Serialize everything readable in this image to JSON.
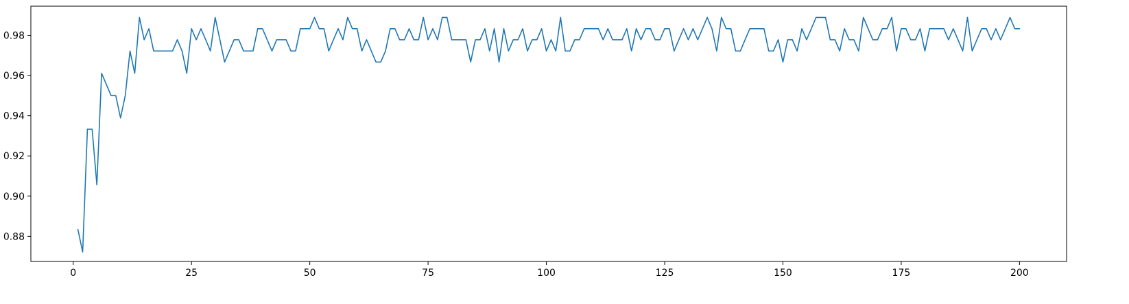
{
  "chart_data": {
    "type": "line",
    "title": "",
    "xlabel": "",
    "ylabel": "",
    "xlim": [
      -8.95,
      209.95
    ],
    "ylim": [
      0.8675,
      0.9945
    ],
    "grid": false,
    "line_color": "#1f77b4",
    "x_ticks": [
      {
        "value": 0,
        "label": "0"
      },
      {
        "value": 25,
        "label": "25"
      },
      {
        "value": 50,
        "label": "50"
      },
      {
        "value": 75,
        "label": "75"
      },
      {
        "value": 100,
        "label": "100"
      },
      {
        "value": 125,
        "label": "125"
      },
      {
        "value": 150,
        "label": "150"
      },
      {
        "value": 175,
        "label": "175"
      },
      {
        "value": 200,
        "label": "200"
      }
    ],
    "y_ticks": [
      {
        "value": 0.88,
        "label": "0.88"
      },
      {
        "value": 0.9,
        "label": "0.90"
      },
      {
        "value": 0.92,
        "label": "0.92"
      },
      {
        "value": 0.94,
        "label": "0.94"
      },
      {
        "value": 0.96,
        "label": "0.96"
      },
      {
        "value": 0.98,
        "label": "0.98"
      }
    ],
    "series": [
      {
        "x_start": 1,
        "values": [
          0.8833,
          0.8722,
          0.9333,
          0.9333,
          0.9056,
          0.9611,
          0.9556,
          0.95,
          0.95,
          0.9389,
          0.95,
          0.9722,
          0.9611,
          0.9889,
          0.9778,
          0.9833,
          0.9722,
          0.9722,
          0.9722,
          0.9722,
          0.9722,
          0.9778,
          0.9722,
          0.9611,
          0.9833,
          0.9778,
          0.9833,
          0.9778,
          0.9722,
          0.9889,
          0.9778,
          0.9667,
          0.9722,
          0.9778,
          0.9778,
          0.9722,
          0.9722,
          0.9722,
          0.9833,
          0.9833,
          0.9778,
          0.9722,
          0.9778,
          0.9778,
          0.9778,
          0.9722,
          0.9722,
          0.9833,
          0.9833,
          0.9833,
          0.9889,
          0.9833,
          0.9833,
          0.9722,
          0.9778,
          0.9833,
          0.9778,
          0.9889,
          0.9833,
          0.9833,
          0.9722,
          0.9778,
          0.9722,
          0.9667,
          0.9667,
          0.9722,
          0.9833,
          0.9833,
          0.9778,
          0.9778,
          0.9833,
          0.9778,
          0.9778,
          0.9889,
          0.9778,
          0.9833,
          0.9778,
          0.9889,
          0.9889,
          0.9778,
          0.9778,
          0.9778,
          0.9778,
          0.9667,
          0.9778,
          0.9778,
          0.9833,
          0.9722,
          0.9833,
          0.9667,
          0.9833,
          0.9722,
          0.9778,
          0.9778,
          0.9833,
          0.9722,
          0.9778,
          0.9778,
          0.9833,
          0.9722,
          0.9778,
          0.9722,
          0.9889,
          0.9722,
          0.9722,
          0.9778,
          0.9778,
          0.9833,
          0.9833,
          0.9833,
          0.9833,
          0.9778,
          0.9833,
          0.9778,
          0.9778,
          0.9778,
          0.9833,
          0.9722,
          0.9833,
          0.9778,
          0.9833,
          0.9833,
          0.9778,
          0.9778,
          0.9833,
          0.9833,
          0.9722,
          0.9778,
          0.9833,
          0.9778,
          0.9833,
          0.9778,
          0.9833,
          0.9889,
          0.9833,
          0.9722,
          0.9889,
          0.9833,
          0.9833,
          0.9722,
          0.9722,
          0.9778,
          0.9833,
          0.9833,
          0.9833,
          0.9833,
          0.9722,
          0.9722,
          0.9778,
          0.9667,
          0.9778,
          0.9778,
          0.9722,
          0.9833,
          0.9778,
          0.9833,
          0.9889,
          0.9889,
          0.9889,
          0.9778,
          0.9778,
          0.9722,
          0.9833,
          0.9778,
          0.9778,
          0.9722,
          0.9889,
          0.9833,
          0.9778,
          0.9778,
          0.9833,
          0.9833,
          0.9889,
          0.9722,
          0.9833,
          0.9833,
          0.9778,
          0.9778,
          0.9833,
          0.9722,
          0.9833,
          0.9833,
          0.9833,
          0.9833,
          0.9778,
          0.9833,
          0.9778,
          0.9722,
          0.9889,
          0.9722,
          0.9778,
          0.9833,
          0.9833,
          0.9778,
          0.9833,
          0.9778,
          0.9833,
          0.9889,
          0.9833,
          0.9833
        ]
      }
    ]
  }
}
